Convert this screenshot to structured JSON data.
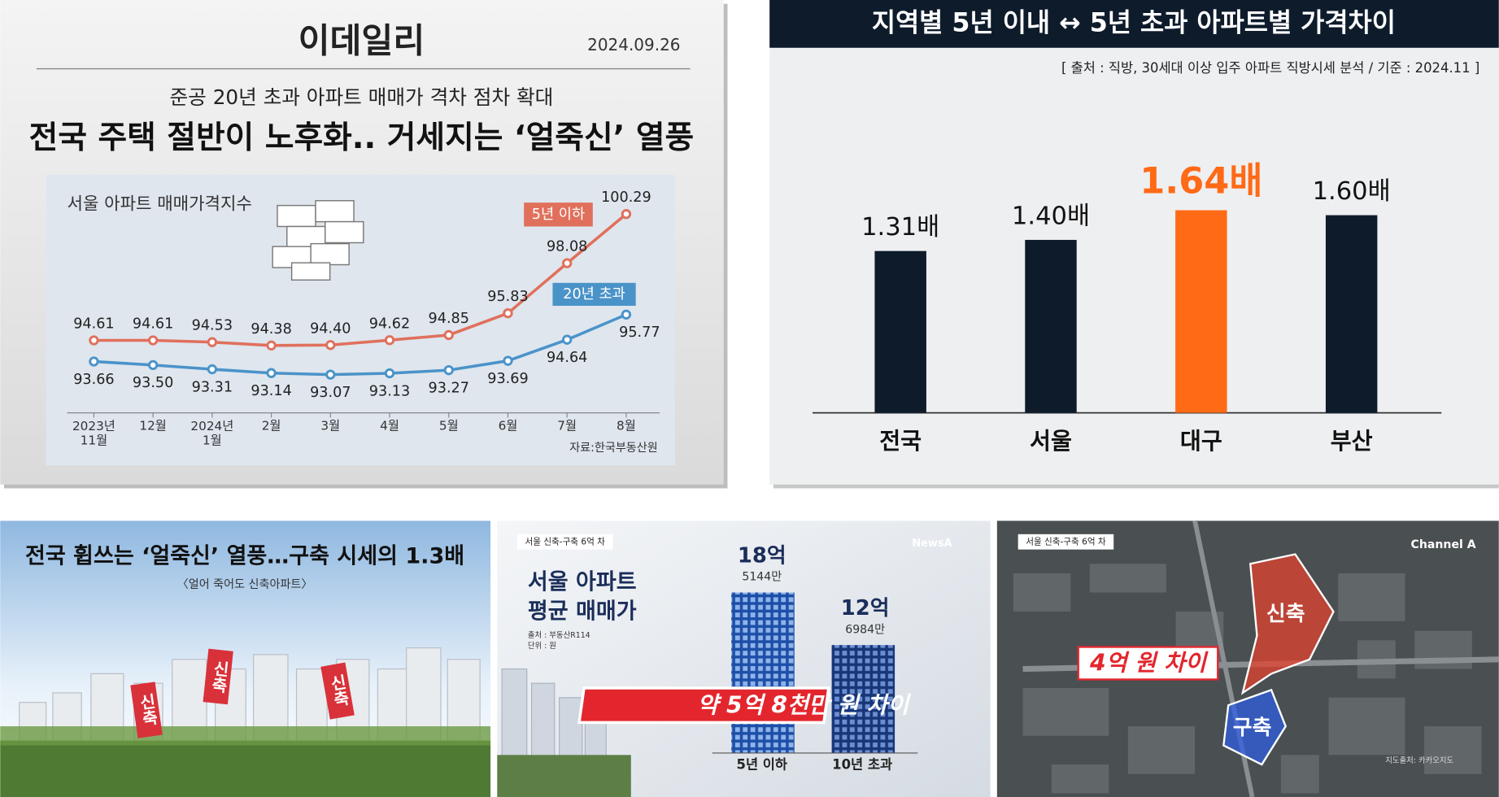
{
  "news_card": {
    "outlet": "이데일리",
    "date": "2024.09.26",
    "subtitle": "준공 20년 초과 아파트 매매가 격차 점차 확대",
    "headline": "전국 주택 절반이 노후화.. 거세지는 ‘얼죽신’ 열풍"
  },
  "chart_data": [
    {
      "type": "line",
      "title": "서울 아파트 매매가격지수",
      "source": "자료:한국부동산원",
      "categories": [
        "2023년 11월",
        "12월",
        "2024년 1월",
        "2월",
        "3월",
        "4월",
        "5월",
        "6월",
        "7월",
        "8월"
      ],
      "series": [
        {
          "name": "5년 이하",
          "color": "#e0705c",
          "values": [
            94.61,
            94.61,
            94.53,
            94.38,
            94.4,
            94.62,
            94.85,
            95.83,
            98.08,
            100.29
          ],
          "value_labels": [
            "94.61",
            "94.61",
            "94.53",
            "94.38",
            "94.40",
            "94.62",
            "94.85",
            "95.83",
            "98.08",
            "100.29"
          ]
        },
        {
          "name": "20년 초과",
          "color": "#4a93c9",
          "values": [
            93.66,
            93.5,
            93.31,
            93.14,
            93.07,
            93.13,
            93.27,
            93.69,
            94.64,
            95.77
          ],
          "value_labels": [
            "93.66",
            "93.50",
            "93.31",
            "93.14",
            "93.07",
            "93.13",
            "93.27",
            "93.69",
            "94.64",
            "95.77"
          ]
        }
      ]
    },
    {
      "type": "bar",
      "title": "지역별 5년 이내 ↔ 5년 초과 아파트별 가격차이",
      "source": "[ 출처 : 직방, 30세대 이상 입주 아파트 직방시세 분석  / 기준 : 2024.11 ]",
      "categories": [
        "전국",
        "서울",
        "대구",
        "부산"
      ],
      "values": [
        1.31,
        1.4,
        1.64,
        1.6
      ],
      "value_labels": [
        "1.31배",
        "1.40배",
        "1.64배",
        "1.60배"
      ],
      "colors": [
        "#0e1b2b",
        "#0e1b2b",
        "#ff6a16",
        "#0e1b2b"
      ]
    }
  ],
  "bottom_panels": {
    "left": {
      "headline": "전국 휩쓰는 ‘얼죽신’ 열풍…구축 시세의 1.3배",
      "subtitle": "〈얼어 죽어도 신축아파트〉",
      "banners": [
        "신축",
        "신축",
        "신축"
      ]
    },
    "middle": {
      "tag": "서울 신축-구축 6억 차",
      "logo": "NewsA",
      "title_lines": [
        "서울 아파트",
        "평균 매매가"
      ],
      "source": "출처 : 부동산R114",
      "unit": "단위 : 원",
      "new_price": [
        "18억",
        "5144만"
      ],
      "old_price": [
        "12억",
        "6984만"
      ],
      "difference": "약 5억 8천만 원 차이",
      "new_label": "5년 이하",
      "old_label": "10년 초과"
    },
    "right": {
      "tag": "서울 신축-구축 6억 차",
      "logo": "Channel A",
      "new_label": "신축",
      "old_label": "구축",
      "difference": "4억 원 차이",
      "credit": "지도출처: 카카오지도"
    }
  }
}
